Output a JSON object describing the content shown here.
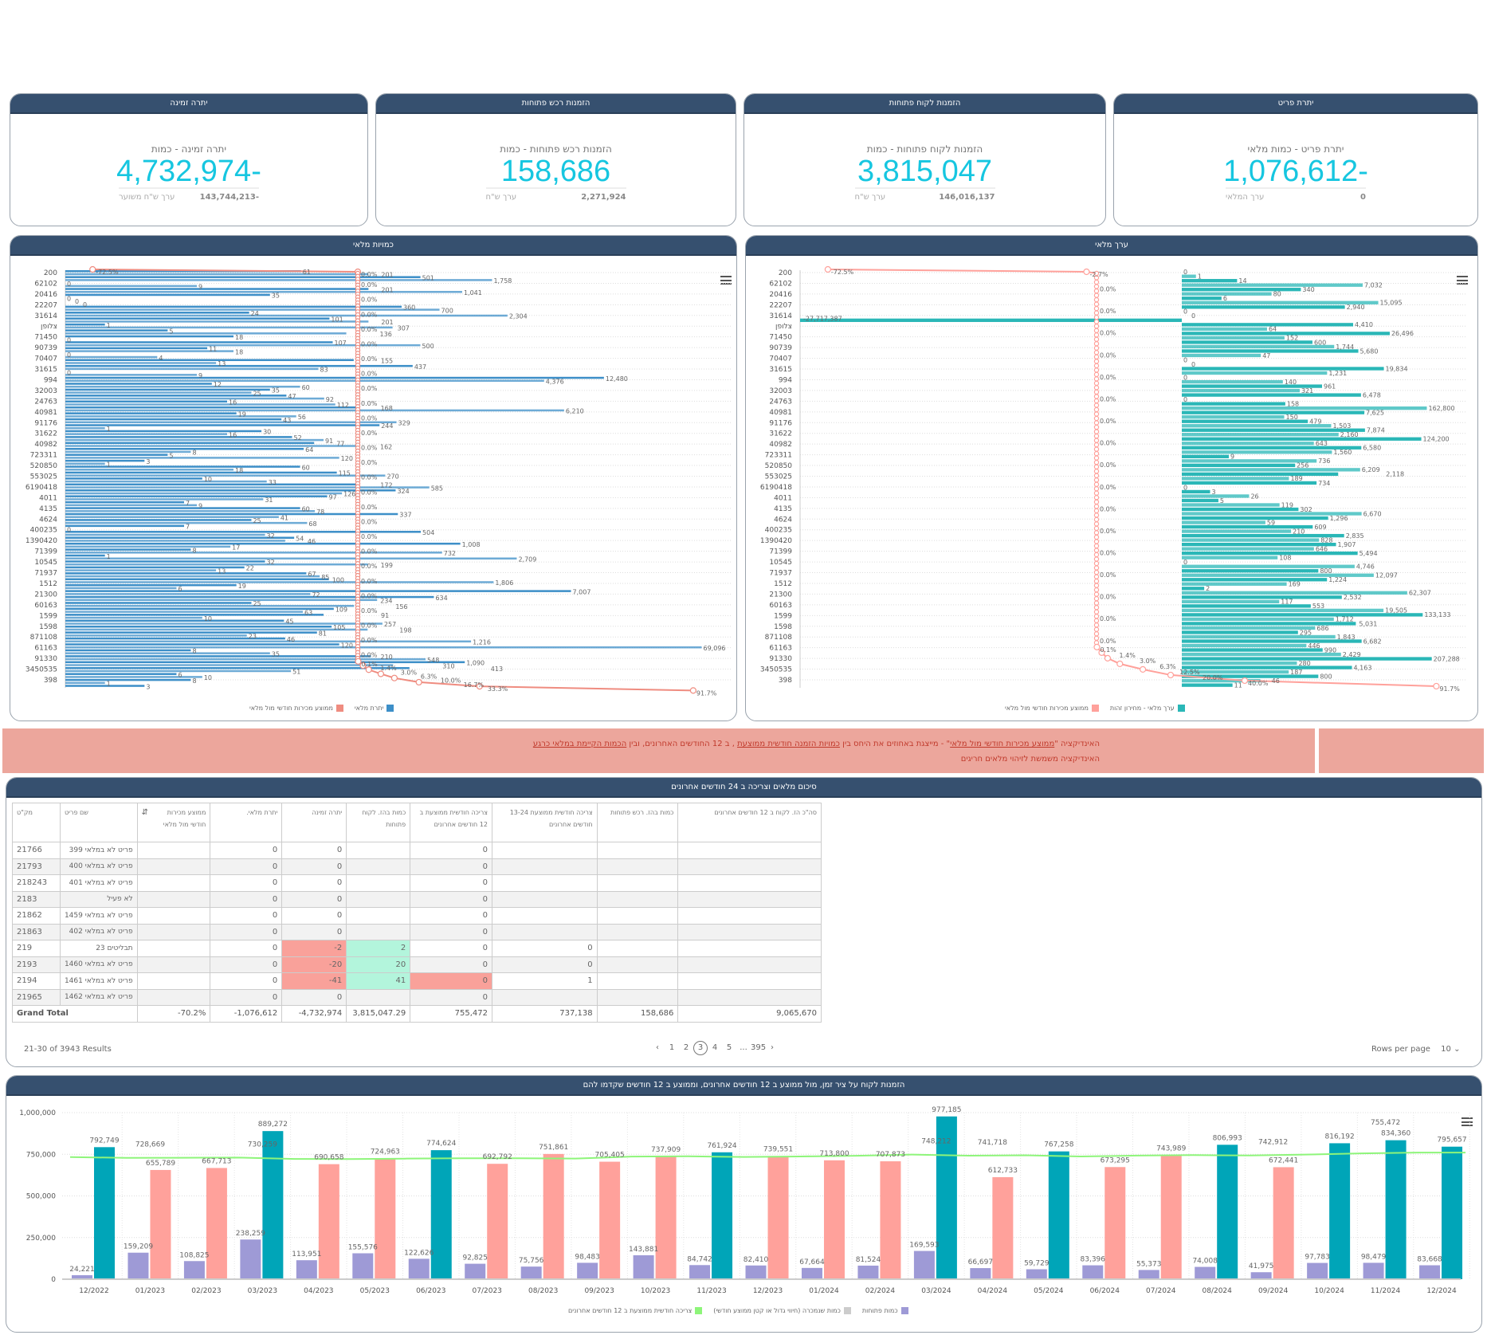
{
  "kpis": [
    {
      "header": "יתרת פריט",
      "subtitle": "יתרת פריט - כמות מלאי",
      "value": "1,076,612-",
      "foot_label": "ערך המלאי",
      "foot_value": "0"
    },
    {
      "header": "הזמנות לקוח פתוחות",
      "subtitle": "הזמנות לקוח פתוחות - כמות",
      "value": "3,815,047",
      "foot_label": "ערך ש\"ח",
      "foot_value": "146,016,137"
    },
    {
      "header": "הזמנות רכש פתוחות",
      "subtitle": "הזמנות רכש פתוחות - כמות",
      "value": "158,686",
      "foot_label": "ערך ש\"ח",
      "foot_value": "2,271,924"
    },
    {
      "header": "יתרה זמינה",
      "subtitle": "יתרה זמינה - כמות",
      "value": "4,732,974-",
      "foot_label": "ערך ש\"ח משוער",
      "foot_value": "143,744,213-"
    }
  ],
  "colors": {
    "header": "#36506f",
    "kpi": "#16c6e0",
    "bar_qty": "#3d8fc8",
    "bar_value": "#2ab7b7",
    "line_pct": "#ef8c80",
    "open": "#9e9ad6",
    "above": "#00a5b8",
    "below": "#ffa19b",
    "avg": "#8ef57a"
  },
  "categories": [
    "200",
    "62102",
    "20416",
    "22207",
    "31614",
    "צלופן",
    "71450",
    "90739",
    "70407",
    "31615",
    "994",
    "32003",
    "24763",
    "40981",
    "91176",
    "31622",
    "40982",
    "723311",
    "520850",
    "553025",
    "6190418",
    "4011",
    "4135",
    "4624",
    "400235",
    "1390420",
    "71399",
    "10545",
    "71937",
    "1512",
    "21300",
    "60163",
    "1599",
    "1598",
    "871108",
    "61163",
    "91330",
    "3450535",
    "398"
  ],
  "chart_data": [
    {
      "type": "bar",
      "orientation": "horizontal",
      "title": "כמויות מלאי",
      "x_scale": "log",
      "legend": [
        "יתרת מלאי",
        "ממוצע מכירות חודשי מול מלאי"
      ],
      "legend_position": "bottom",
      "bar_values": [
        61,
        201,
        501,
        1758,
        0,
        9,
        201,
        1041,
        35,
        0,
        0,
        0,
        360,
        700,
        24,
        2304,
        101,
        201,
        1,
        307,
        5,
        136,
        18,
        0,
        107,
        500,
        11,
        18,
        0,
        4,
        155,
        13,
        437,
        83,
        0,
        9,
        12480,
        4376,
        12,
        60,
        35,
        25,
        47,
        92,
        16,
        112,
        168,
        6210,
        19,
        56,
        43,
        329,
        244,
        1,
        30,
        16,
        52,
        91,
        77,
        162,
        64,
        8,
        5,
        120,
        3,
        1,
        60,
        18,
        115,
        270,
        10,
        33,
        172,
        585,
        324,
        126,
        97,
        31,
        7,
        9,
        60,
        78,
        337,
        41,
        25,
        68,
        7,
        0,
        504,
        32,
        54,
        46,
        1008,
        17,
        8,
        732,
        1,
        2709,
        32,
        199,
        22,
        13,
        67,
        85,
        100,
        1806,
        19,
        6,
        7007,
        72,
        634,
        234,
        25,
        156,
        109,
        63,
        91,
        10,
        45,
        257,
        105,
        198,
        81,
        23,
        46,
        1216,
        120,
        69096,
        8,
        35,
        210,
        548,
        1090,
        310,
        413,
        51,
        6,
        10,
        8,
        1,
        3
      ],
      "line_tail": [
        0.1,
        1.4,
        3.0,
        6.3,
        10.0,
        16.7,
        33.3,
        91.7
      ],
      "line_head": [
        -72.5,
        0.0
      ]
    },
    {
      "type": "bar",
      "orientation": "horizontal",
      "title": "ערך מלאי",
      "x_scale": "log",
      "legend": [
        "ערך מלאי - מחירון זהות",
        "ממוצע מכירות חודשי מול מלאי"
      ],
      "legend_position": "bottom",
      "bar_values": [
        0,
        1,
        14,
        7032,
        340,
        80,
        6,
        15095,
        2940,
        0,
        0,
        -27717387,
        4410,
        64,
        26496,
        152,
        600,
        1744,
        5680,
        47,
        0,
        0,
        19834,
        1231,
        0,
        140,
        961,
        321,
        6478,
        0,
        158,
        162800,
        7625,
        150,
        479,
        1503,
        7874,
        2160,
        124200,
        643,
        6580,
        1560,
        9,
        736,
        256,
        6209,
        2118,
        189,
        734,
        0,
        3,
        26,
        5,
        119,
        302,
        6670,
        1296,
        59,
        609,
        210,
        2835,
        828,
        1907,
        646,
        5494,
        108,
        0,
        4746,
        800,
        12097,
        1224,
        169,
        2,
        62307,
        2532,
        117,
        553,
        19505,
        133133,
        1712,
        5031,
        686,
        295,
        1843,
        6682,
        446,
        990,
        2429,
        207288,
        280,
        4163,
        187,
        800,
        46,
        11
      ],
      "line_tail": [
        0.1,
        1.4,
        3.0,
        6.3,
        12.5,
        20.0,
        40.0,
        91.7
      ],
      "line_head": [
        -72.5,
        -2.7
      ]
    },
    {
      "type": "bar",
      "title": "הזמנות לקוח על ציר זמן, מול ממוצע ב 12 חודשים אחרונים, וממוצע ב 12 חודשים שקדמו להם",
      "categories": [
        "12/2022",
        "01/2023",
        "02/2023",
        "03/2023",
        "04/2023",
        "05/2023",
        "06/2023",
        "07/2023",
        "08/2023",
        "09/2023",
        "10/2023",
        "11/2023",
        "12/2023",
        "01/2024",
        "02/2024",
        "03/2024",
        "04/2024",
        "05/2024",
        "06/2024",
        "07/2024",
        "08/2024",
        "09/2024",
        "10/2024",
        "11/2024",
        "12/2024"
      ],
      "ylim": [
        0,
        1000000
      ],
      "yticks": [
        "0",
        "250,000",
        "500,000",
        "750,000",
        "1,000,000"
      ],
      "series": [
        {
          "name": "כמות פתוחות",
          "type": "bar",
          "values": [
            24221,
            159209,
            108825,
            238259,
            113951,
            155576,
            122626,
            92825,
            75756,
            98483,
            143881,
            84742,
            82410,
            67664,
            81524,
            169593,
            66697,
            59729,
            83396,
            55373,
            74008,
            41975,
            97783,
            98479,
            83668
          ]
        },
        {
          "name": "כמות שנמכרה (חיווי גדול או קטן ממוצע חודשי)",
          "type": "bar",
          "values": [
            792749,
            655789,
            667713,
            889272,
            690658,
            724963,
            774624,
            692792,
            751861,
            705405,
            737909,
            761924,
            739551,
            713800,
            707873,
            977185,
            612733,
            767258,
            673295,
            743989,
            806993,
            672441,
            816192,
            834360,
            795657
          ],
          "above_avg": [
            true,
            false,
            false,
            true,
            false,
            false,
            true,
            false,
            false,
            false,
            false,
            true,
            false,
            false,
            false,
            true,
            false,
            true,
            false,
            false,
            true,
            false,
            true,
            true,
            true
          ]
        },
        {
          "name": "צריכה חודשית ממוצעת ב 12 חודשים אחרונים",
          "type": "line",
          "values": [
            733000,
            728669,
            729000,
            730259,
            722000,
            721000,
            724000,
            726000,
            726000,
            724000,
            736000,
            738000,
            734000,
            737000,
            741000,
            748212,
            741718,
            744000,
            737000,
            742000,
            745000,
            742912,
            748000,
            755472,
            760000
          ],
          "labeled_points": [
            1,
            3,
            15,
            16,
            21,
            23
          ]
        }
      ]
    }
  ],
  "banner": {
    "line1_prefix": "האינדיקציה \"",
    "line1_link": "ממוצע מכירות חודשי מול מלאי",
    "line1_mid": "\" - מייצגת באחוזים את היחס בין ",
    "line1_link2": "כמויות הזמנה חודשית ממוצעת",
    "line1_mid2": " , ב 12 החודשים האחרונים, ובין ",
    "line1_link3": "הכמות הקיימת במלאי כרגע",
    "line2": "האינדיקציה משמשת לזיהוי מלאים חריגים"
  },
  "table": {
    "title": "סיכום מלאים וצריכה ב 24 חודשים אחרונים",
    "columns": [
      "מק\"ט",
      "שם פריט",
      "ממוצע מכירות חודשי מול מלאי",
      "יתרת מלאי.",
      "יתרה זמינה",
      "כמות בהז. לקוח פתוחות",
      "צריכה חודשית ממוצעת ב 12 חודשים אחרונים",
      "צריכה חודשית ממוצעת 13-24 חודשים אחרונים",
      "כמות בהז. רכש פתוחות",
      "סה\"כ הז. לקוח ב 12 חודשים אחרונים"
    ],
    "rows": [
      [
        "21766",
        "פריט לא במלאי 399",
        "",
        "0",
        "0",
        "",
        "0",
        "",
        "",
        ""
      ],
      [
        "21793",
        "פריט לא במלאי 400",
        "",
        "0",
        "0",
        "",
        "0",
        "",
        "",
        ""
      ],
      [
        "218243",
        "פריט לא במלאי 401",
        "",
        "0",
        "0",
        "",
        "0",
        "",
        "",
        ""
      ],
      [
        "2183",
        "לא פעיל",
        "",
        "0",
        "0",
        "",
        "0",
        "",
        "",
        ""
      ],
      [
        "21862",
        "פריט לא במלאי 1459",
        "",
        "0",
        "0",
        "",
        "0",
        "",
        "",
        ""
      ],
      [
        "21863",
        "פריט לא במלאי 402",
        "",
        "0",
        "0",
        "",
        "0",
        "",
        "",
        ""
      ],
      [
        "219",
        "תבליטים 23",
        "",
        "0",
        "-2",
        "2",
        "0",
        "0",
        "",
        ""
      ],
      [
        "2193",
        "פריט לא במלאי 1460",
        "",
        "0",
        "-20",
        "20",
        "0",
        "0",
        "",
        ""
      ],
      [
        "2194",
        "פריט לא במלאי 1461",
        "",
        "0",
        "-41",
        "41",
        "0",
        "1",
        "",
        ""
      ],
      [
        "21965",
        "פריט לא במלאי 1462",
        "",
        "0",
        "0",
        "",
        "0",
        "",
        "",
        ""
      ]
    ],
    "highlights": {
      "6": {
        "4": "neg",
        "5": "pos"
      },
      "7": {
        "4": "neg",
        "5": "pos"
      },
      "8": {
        "4": "neg",
        "5": "pos",
        "6": "neg"
      }
    },
    "total": [
      "Grand Total",
      "-70.2%",
      "-1,076,612",
      "-4,732,974",
      "3,815,047.29",
      "755,472",
      "737,138",
      "158,686",
      "9,065,670"
    ],
    "results": "21-30 of 3943 Results",
    "pages": [
      "1",
      "2",
      "3",
      "4",
      "5",
      "...",
      "395"
    ],
    "current_page": "3",
    "prev": "‹",
    "next": "›",
    "rows_per_page_label": "Rows per page",
    "rows_per_page": "10"
  }
}
